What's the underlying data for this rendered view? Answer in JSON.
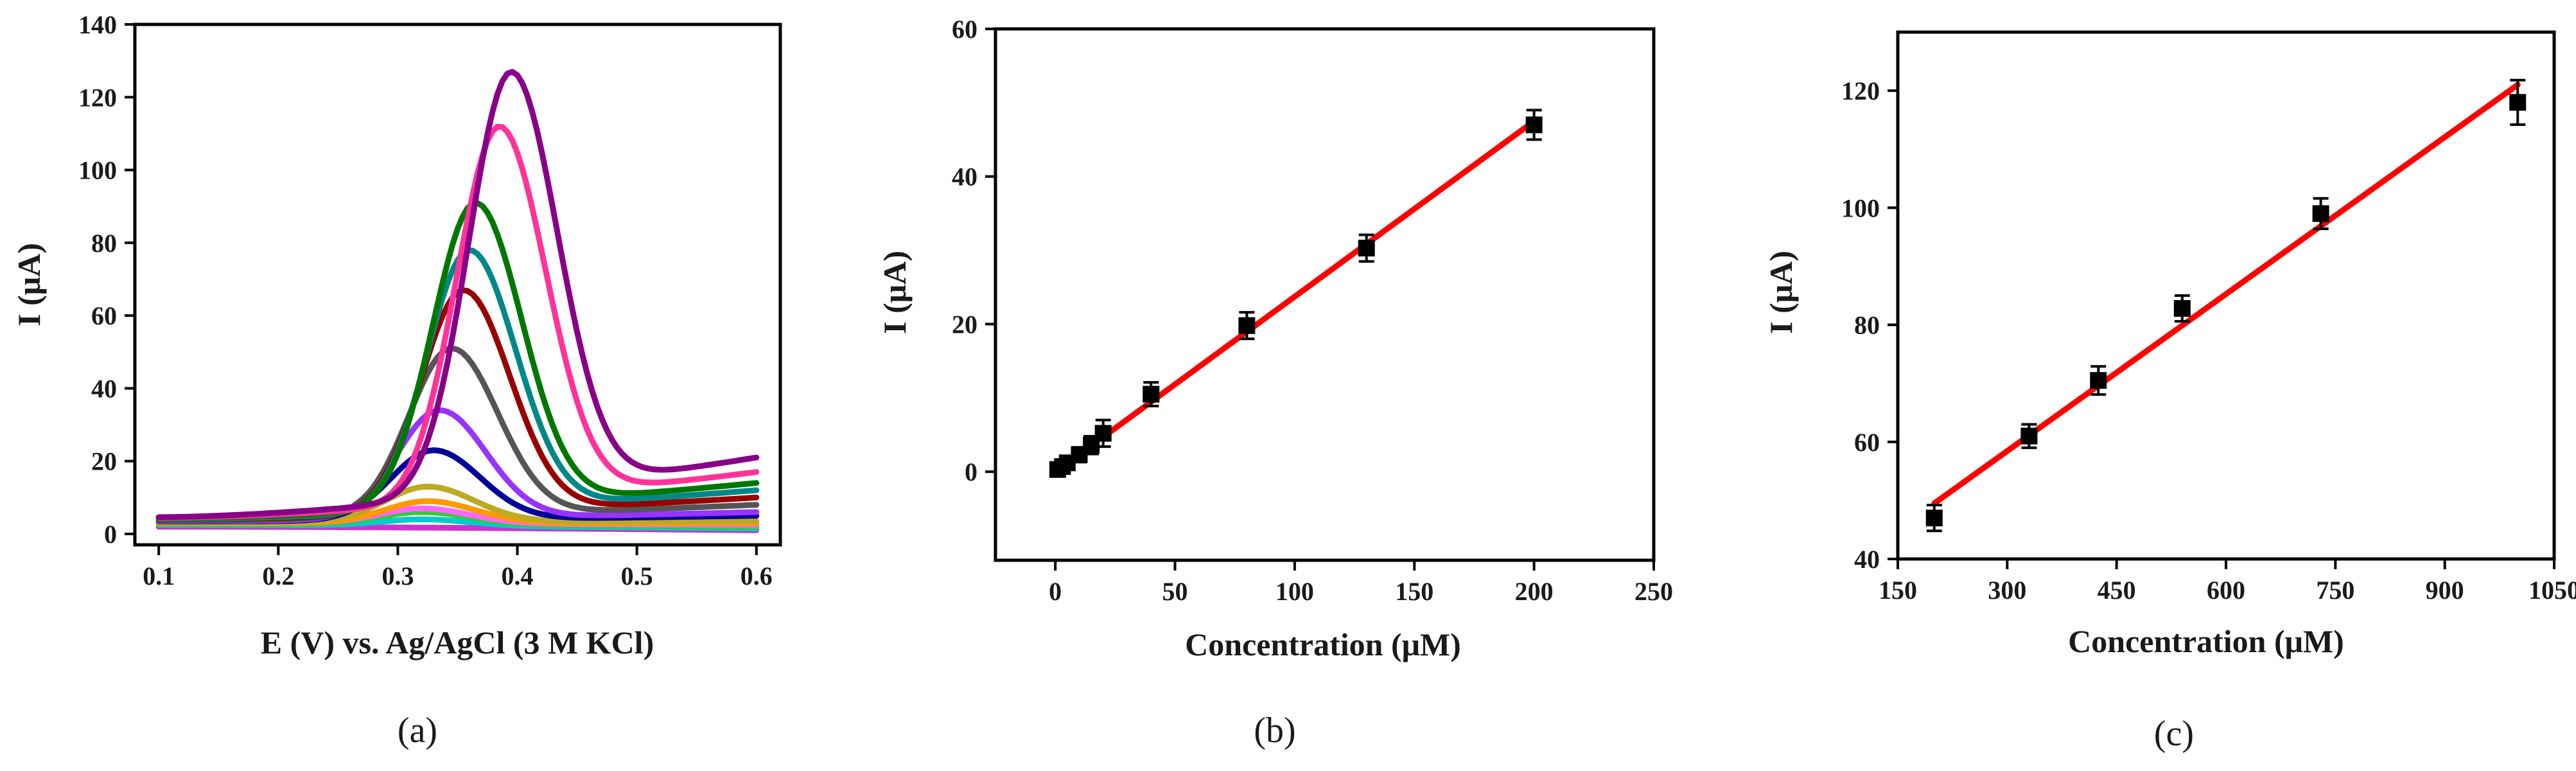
{
  "panels": [
    {
      "caption_prefix": "(",
      "caption_letter": "a",
      "caption_suffix": ")"
    },
    {
      "caption_prefix": "(",
      "caption_letter": "b",
      "caption_suffix": ")"
    },
    {
      "caption_prefix": "(",
      "caption_letter": "c",
      "caption_suffix": ")"
    }
  ],
  "chart_data": [
    {
      "type": "line",
      "xlabel": "E (V) vs. Ag/AgCl (3 M KCl)",
      "ylabel": "I (μA)",
      "xlim": [
        0.08,
        0.62
      ],
      "ylim": [
        -3,
        140
      ],
      "xticks": [
        0.1,
        0.2,
        0.3,
        0.4,
        0.5,
        0.6
      ],
      "yticks": [
        0,
        20,
        40,
        60,
        80,
        100,
        120,
        140
      ],
      "x_range": [
        0.1,
        0.6
      ],
      "series": [
        {
          "color": "#CC33CC",
          "peak_potential": 0.32,
          "peak_current": 1.5,
          "baseline_start": 2.0,
          "baseline_end": 1.0
        },
        {
          "color": "#00CCCC",
          "peak_potential": 0.32,
          "peak_current": 4,
          "baseline_start": 2.5,
          "baseline_end": 1.5
        },
        {
          "color": "#33CC33",
          "peak_potential": 0.32,
          "peak_current": 6,
          "baseline_start": 2.8,
          "baseline_end": 2.0
        },
        {
          "color": "#FF66FF",
          "peak_potential": 0.32,
          "peak_current": 7,
          "baseline_start": 3.0,
          "baseline_end": 2.5
        },
        {
          "color": "#FF9900",
          "peak_potential": 0.325,
          "peak_current": 9,
          "baseline_start": 3.0,
          "baseline_end": 3.0
        },
        {
          "color": "#BBAA22",
          "peak_potential": 0.325,
          "peak_current": 13,
          "baseline_start": 3.2,
          "baseline_end": 3.5
        },
        {
          "color": "#000099",
          "peak_potential": 0.33,
          "peak_current": 23,
          "baseline_start": 3.4,
          "baseline_end": 5.0
        },
        {
          "color": "#9933FF",
          "peak_potential": 0.335,
          "peak_current": 34,
          "baseline_start": 3.5,
          "baseline_end": 6.0
        },
        {
          "color": "#555555",
          "peak_potential": 0.345,
          "peak_current": 51,
          "baseline_start": 3.7,
          "baseline_end": 8.0
        },
        {
          "color": "#990000",
          "peak_potential": 0.355,
          "peak_current": 67,
          "baseline_start": 3.9,
          "baseline_end": 10.0
        },
        {
          "color": "#008888",
          "peak_potential": 0.36,
          "peak_current": 78,
          "baseline_start": 4.0,
          "baseline_end": 12.0
        },
        {
          "color": "#007700",
          "peak_potential": 0.365,
          "peak_current": 91,
          "baseline_start": 4.2,
          "baseline_end": 14.0
        },
        {
          "color": "#FF3399",
          "peak_potential": 0.385,
          "peak_current": 112,
          "baseline_start": 4.4,
          "baseline_end": 17.0
        },
        {
          "color": "#880088",
          "peak_potential": 0.395,
          "peak_current": 127,
          "baseline_start": 4.6,
          "baseline_end": 21.0
        }
      ]
    },
    {
      "type": "scatter",
      "xlabel": "Concentration (μM)",
      "ylabel": "I (μA)",
      "xlim": [
        -25,
        250
      ],
      "ylim": [
        -12,
        60
      ],
      "xticks": [
        0,
        50,
        100,
        150,
        200,
        250
      ],
      "yticks": [
        0,
        20,
        40,
        60
      ],
      "points": [
        {
          "x": 1,
          "y": 0.3,
          "err": 0.8
        },
        {
          "x": 3,
          "y": 0.7,
          "err": 0.8
        },
        {
          "x": 5,
          "y": 1.2,
          "err": 0.9
        },
        {
          "x": 10,
          "y": 2.3,
          "err": 1.0
        },
        {
          "x": 15,
          "y": 3.6,
          "err": 1.2
        },
        {
          "x": 20,
          "y": 5.2,
          "err": 1.8
        },
        {
          "x": 40,
          "y": 10.5,
          "err": 1.6
        },
        {
          "x": 80,
          "y": 19.8,
          "err": 1.8
        },
        {
          "x": 130,
          "y": 30.3,
          "err": 1.8
        },
        {
          "x": 200,
          "y": 47.0,
          "err": 2.0
        }
      ],
      "fit": {
        "color": "#FF0000",
        "x": [
          20,
          200
        ],
        "y": [
          4.7,
          47.5
        ]
      },
      "marker_color": "#000000"
    },
    {
      "type": "scatter",
      "xlabel": "Concentration (μM)",
      "ylabel": "I (μA)",
      "xlim": [
        150,
        1050
      ],
      "ylim": [
        40,
        130
      ],
      "xticks": [
        150,
        300,
        450,
        600,
        750,
        900,
        1050
      ],
      "yticks": [
        40,
        60,
        80,
        100,
        120
      ],
      "points": [
        {
          "x": 200,
          "y": 47.0,
          "err": 2.2
        },
        {
          "x": 330,
          "y": 61.0,
          "err": 2.0
        },
        {
          "x": 425,
          "y": 70.5,
          "err": 2.4
        },
        {
          "x": 540,
          "y": 82.8,
          "err": 2.2
        },
        {
          "x": 730,
          "y": 99.0,
          "err": 2.6
        },
        {
          "x": 1000,
          "y": 118.0,
          "err": 3.8
        }
      ],
      "fit": {
        "color": "#FF0000",
        "x": [
          200,
          1000
        ],
        "y": [
          49.5,
          121.0
        ]
      },
      "marker_color": "#000000"
    }
  ]
}
